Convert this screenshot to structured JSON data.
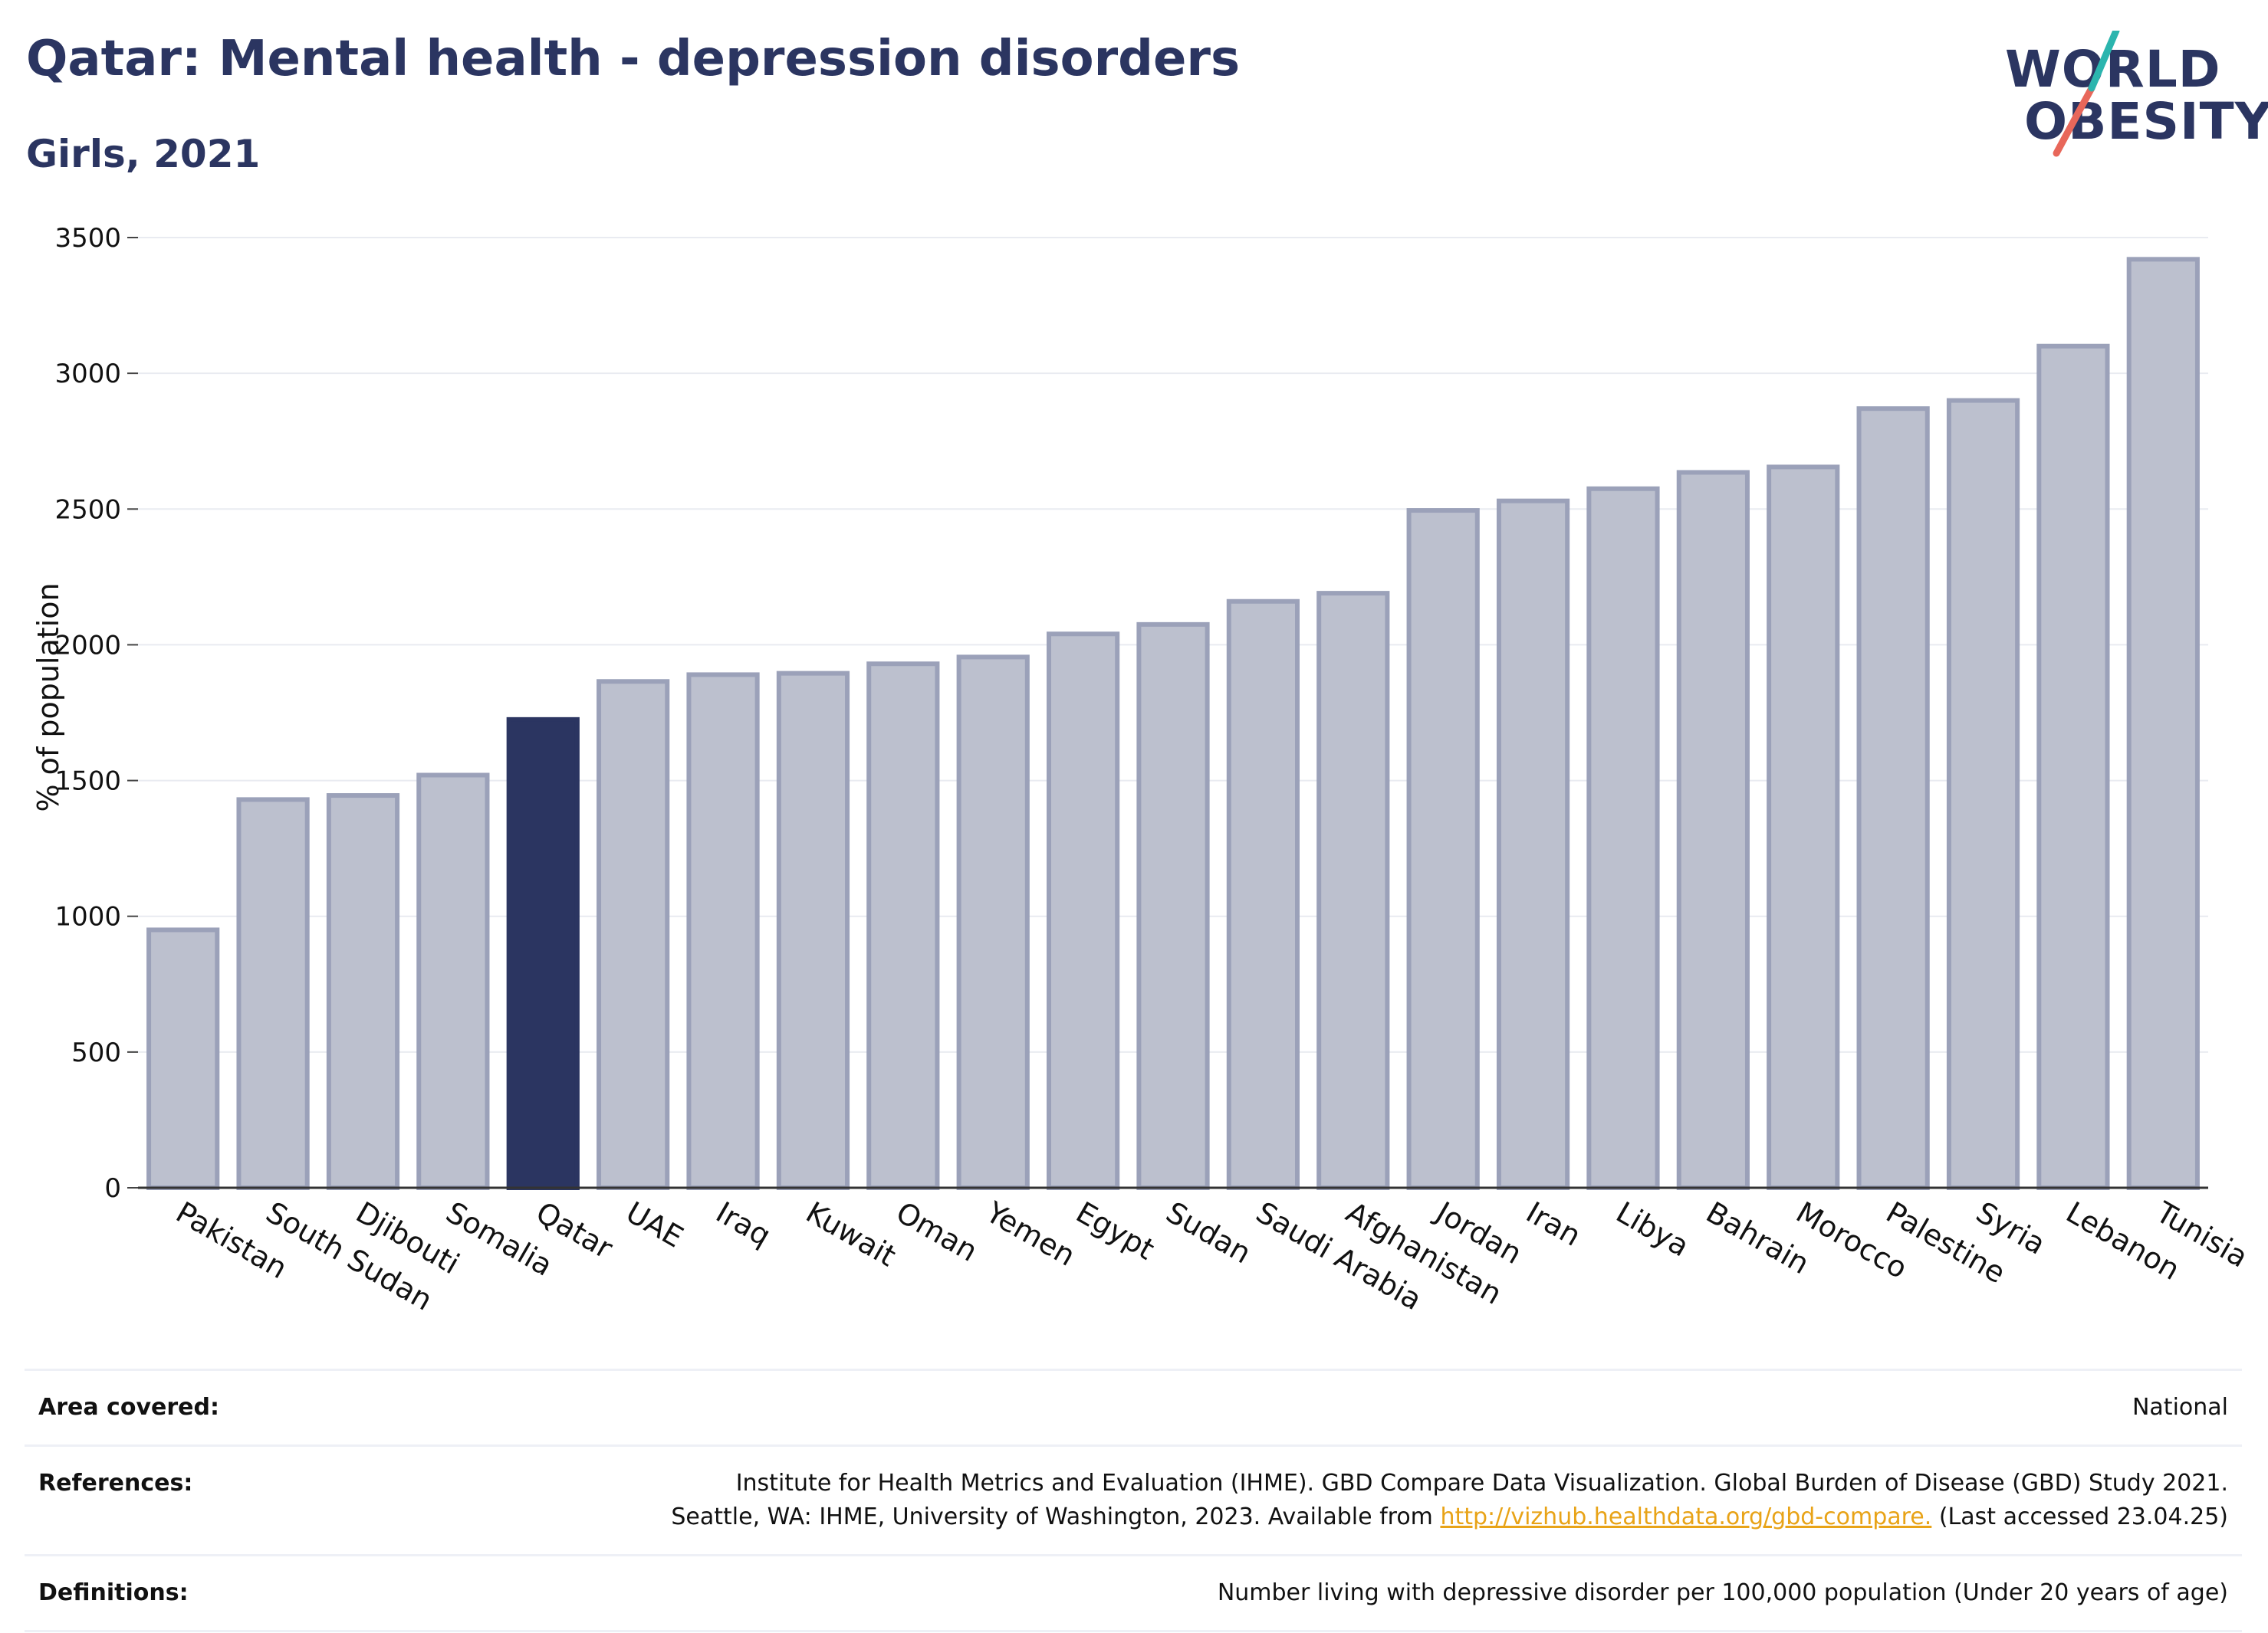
{
  "header": {
    "title": "Qatar: Mental health - depression disorders",
    "subtitle": "Girls, 2021"
  },
  "logo": {
    "line1": "WORLD",
    "line2": "OBESITY"
  },
  "colors": {
    "highlight": "#2b3561",
    "bar_fill": "#bcc0ce",
    "bar_stroke": "#9ba1b9",
    "accent_teal": "#2bb5ae",
    "accent_red": "#e8675a"
  },
  "chart_data": {
    "type": "bar",
    "ylabel": "% of population",
    "ylim": [
      0,
      3500
    ],
    "yticks": [
      0,
      500,
      1000,
      1500,
      2000,
      2500,
      3000,
      3500
    ],
    "grid": true,
    "highlight": "Qatar",
    "categories": [
      "Pakistan",
      "South Sudan",
      "Djibouti",
      "Somalia",
      "Qatar",
      "UAE",
      "Iraq",
      "Kuwait",
      "Oman",
      "Yemen",
      "Egypt",
      "Sudan",
      "Saudi Arabia",
      "Afghanistan",
      "Jordan",
      "Iran",
      "Libya",
      "Bahrain",
      "Morocco",
      "Palestine",
      "Syria",
      "Lebanon",
      "Tunisia"
    ],
    "values": [
      950,
      1430,
      1445,
      1520,
      1725,
      1865,
      1890,
      1895,
      1930,
      1955,
      2040,
      2075,
      2160,
      2190,
      2495,
      2530,
      2575,
      2635,
      2655,
      2870,
      2900,
      3100,
      3420
    ]
  },
  "info": {
    "area_label": "Area covered:",
    "area_value": "National",
    "references_label": "References:",
    "references_line1": "Institute for Health Metrics and Evaluation (IHME). GBD Compare Data Visualization. Global Burden of Disease (GBD) Study 2021.",
    "references_line2_pre": "Seattle, WA: IHME, University of Washington, 2023. Available from ",
    "references_link": "http://vizhub.healthdata.org/gbd-compare.",
    "references_line2_post": " (Last accessed 23.04.25)",
    "definitions_label": "Definitions:",
    "definitions_value": "Number living with depressive disorder per 100,000 population (Under 20 years of age)"
  }
}
